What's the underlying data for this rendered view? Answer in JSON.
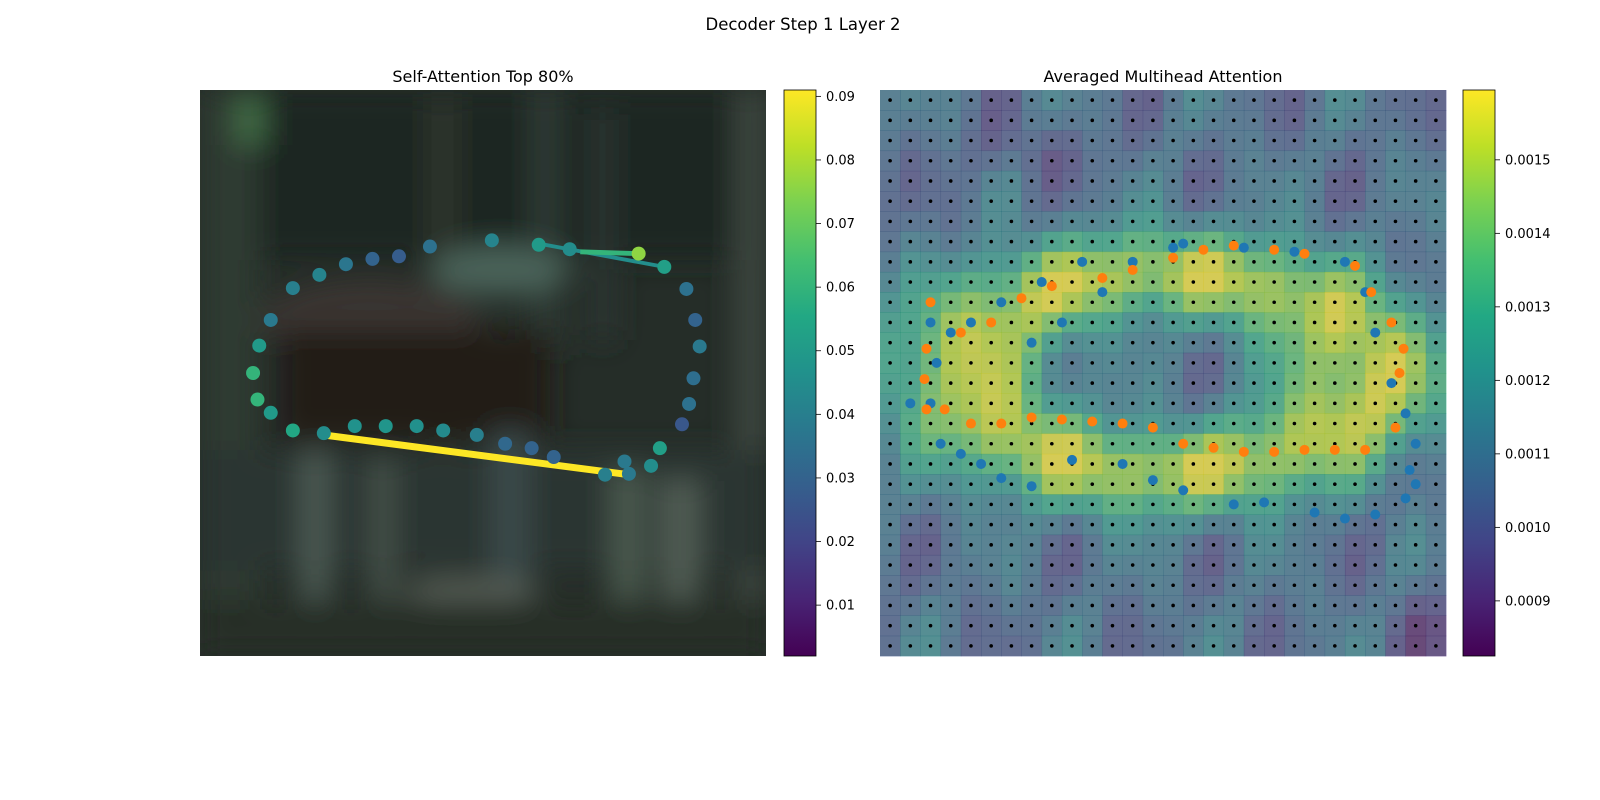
{
  "figure": {
    "suptitle": "Decoder Step 1 Layer 2"
  },
  "chart_data": [
    {
      "type": "scatter",
      "title": "Self-Attention Top 80%",
      "background": "blurred dark green forest photograph",
      "x_range": [
        0,
        64
      ],
      "y_range": [
        0,
        64
      ],
      "colormap": "viridis",
      "colorbar": {
        "range": [
          0.002,
          0.091
        ],
        "ticks": [
          0.01,
          0.02,
          0.03,
          0.04,
          0.05,
          0.06,
          0.07,
          0.08,
          0.09
        ],
        "tick_labels": [
          "0.01",
          "0.02",
          "0.03",
          "0.04",
          "0.05",
          "0.06",
          "0.07",
          "0.08",
          "0.09"
        ]
      },
      "points": [
        [
          6.0,
          32.0,
          0.06
        ],
        [
          6.7,
          28.9,
          0.05
        ],
        [
          8.0,
          26.0,
          0.038
        ],
        [
          10.5,
          22.4,
          0.04
        ],
        [
          13.5,
          20.9,
          0.042
        ],
        [
          16.5,
          19.7,
          0.037
        ],
        [
          19.5,
          19.1,
          0.03
        ],
        [
          22.5,
          18.8,
          0.028
        ],
        [
          26.0,
          17.7,
          0.035
        ],
        [
          33.0,
          17.0,
          0.042
        ],
        [
          38.3,
          17.5,
          0.05
        ],
        [
          41.8,
          18.0,
          0.045
        ],
        [
          49.6,
          18.5,
          0.076
        ],
        [
          52.5,
          20.0,
          0.052
        ],
        [
          55.0,
          22.5,
          0.035
        ],
        [
          56.0,
          26.0,
          0.03
        ],
        [
          56.5,
          29.0,
          0.038
        ],
        [
          55.8,
          32.6,
          0.034
        ],
        [
          55.3,
          35.5,
          0.035
        ],
        [
          54.5,
          37.8,
          0.026
        ],
        [
          52.0,
          40.5,
          0.052
        ],
        [
          51.0,
          42.5,
          0.045
        ],
        [
          48.5,
          43.4,
          0.038
        ],
        [
          45.8,
          43.5,
          0.04
        ],
        [
          48.0,
          42.0,
          0.038
        ],
        [
          40.0,
          41.5,
          0.03
        ],
        [
          37.5,
          40.5,
          0.03
        ],
        [
          34.5,
          40.0,
          0.032
        ],
        [
          31.3,
          39.0,
          0.04
        ],
        [
          27.5,
          38.5,
          0.044
        ],
        [
          24.5,
          38.0,
          0.046
        ],
        [
          21.0,
          38.0,
          0.048
        ],
        [
          17.5,
          38.0,
          0.047
        ],
        [
          14.0,
          38.8,
          0.045
        ],
        [
          10.5,
          38.5,
          0.055
        ],
        [
          8.0,
          36.5,
          0.05
        ],
        [
          6.5,
          35.0,
          0.06
        ]
      ],
      "edges": [
        {
          "from": [
            13.9,
            39.0
          ],
          "to": [
            48.5,
            43.5
          ],
          "weight": 0.091
        },
        {
          "from": [
            39.0,
            17.5
          ],
          "to": [
            52.5,
            20.0
          ],
          "weight": 0.045
        },
        {
          "from": [
            43.0,
            18.3
          ],
          "to": [
            49.6,
            18.5
          ],
          "weight": 0.06
        }
      ]
    },
    {
      "type": "heatmap",
      "title": "Averaged Multihead Attention",
      "grid_size": [
        28,
        28
      ],
      "colormap": "viridis",
      "colorbar": {
        "range": [
          0.000825,
          0.001595
        ],
        "ticks": [
          0.0009,
          0.001,
          0.0011,
          0.0012,
          0.0013,
          0.0014,
          0.0015
        ],
        "tick_labels": [
          "0.0009",
          "0.0010",
          "0.0011",
          "0.0012",
          "0.0013",
          "0.0014",
          "0.0015"
        ]
      },
      "blue_points": [
        [
          2.5,
          11.5
        ],
        [
          2.8,
          13.5
        ],
        [
          2.5,
          15.5
        ],
        [
          3.0,
          17.5
        ],
        [
          4.0,
          18.0
        ],
        [
          5.0,
          18.5
        ],
        [
          6.0,
          19.2
        ],
        [
          7.5,
          19.6
        ],
        [
          9.5,
          18.3
        ],
        [
          12.0,
          18.5
        ],
        [
          13.5,
          19.3
        ],
        [
          15.0,
          19.8
        ],
        [
          17.5,
          20.5
        ],
        [
          19.0,
          20.4
        ],
        [
          21.5,
          20.9
        ],
        [
          23.0,
          21.2
        ],
        [
          24.5,
          21.0
        ],
        [
          26.0,
          20.2
        ],
        [
          26.5,
          19.5
        ],
        [
          26.2,
          18.8
        ],
        [
          26.5,
          17.5
        ],
        [
          26.0,
          16.0
        ],
        [
          25.3,
          14.5
        ],
        [
          24.5,
          12.0
        ],
        [
          24.0,
          10.0
        ],
        [
          23.0,
          8.5
        ],
        [
          20.5,
          8.0
        ],
        [
          18.0,
          7.8
        ],
        [
          15.0,
          7.6
        ],
        [
          12.5,
          8.5
        ],
        [
          10.0,
          8.5
        ],
        [
          8.0,
          9.5
        ],
        [
          6.0,
          10.5
        ],
        [
          4.5,
          11.5
        ],
        [
          3.5,
          12.0
        ],
        [
          1.5,
          15.5
        ],
        [
          11.0,
          10.0
        ],
        [
          9.0,
          11.5
        ],
        [
          7.5,
          12.5
        ],
        [
          14.5,
          7.8
        ]
      ],
      "orange_points": [
        [
          2.5,
          10.5
        ],
        [
          2.3,
          12.8
        ],
        [
          2.2,
          14.3
        ],
        [
          2.3,
          15.8
        ],
        [
          3.2,
          15.8
        ],
        [
          4.5,
          16.5
        ],
        [
          6.0,
          16.5
        ],
        [
          7.5,
          16.2
        ],
        [
          9.0,
          16.3
        ],
        [
          10.5,
          16.4
        ],
        [
          12.0,
          16.5
        ],
        [
          13.5,
          16.7
        ],
        [
          15.0,
          17.5
        ],
        [
          16.5,
          17.7
        ],
        [
          18.0,
          17.9
        ],
        [
          19.5,
          17.9
        ],
        [
          21.0,
          17.8
        ],
        [
          22.5,
          17.8
        ],
        [
          24.0,
          17.8
        ],
        [
          25.5,
          16.7
        ],
        [
          25.7,
          14.0
        ],
        [
          25.9,
          12.8
        ],
        [
          25.3,
          11.5
        ],
        [
          24.3,
          10.0
        ],
        [
          23.5,
          8.7
        ],
        [
          21.0,
          8.1
        ],
        [
          19.5,
          7.9
        ],
        [
          17.5,
          7.7
        ],
        [
          16.0,
          7.9
        ],
        [
          14.5,
          8.3
        ],
        [
          12.5,
          8.9
        ],
        [
          11.0,
          9.3
        ],
        [
          8.5,
          9.7
        ],
        [
          7.0,
          10.3
        ],
        [
          5.5,
          11.5
        ],
        [
          4.0,
          12.0
        ]
      ]
    }
  ]
}
